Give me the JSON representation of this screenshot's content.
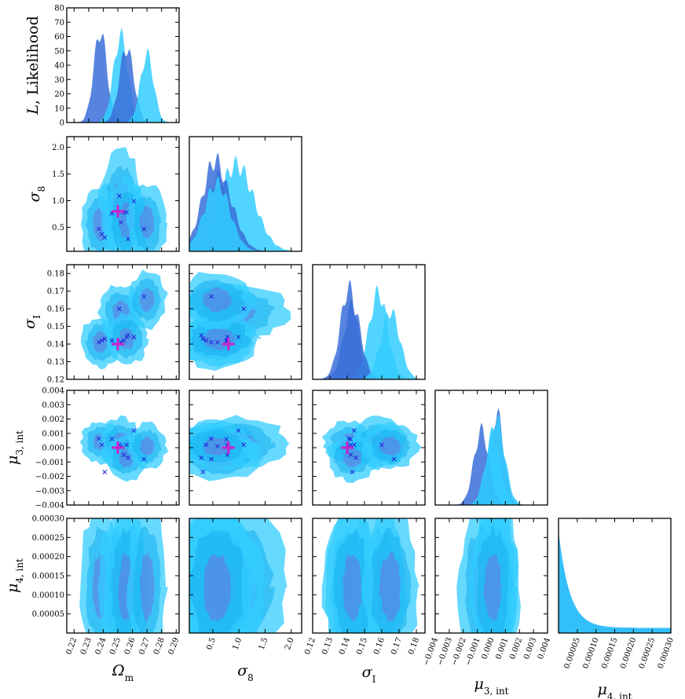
{
  "chart_data": {
    "type": "corner",
    "title": "",
    "colors": {
      "light": "#33ccff",
      "mid": "#1ab2f0",
      "dark": "#3a6fd8",
      "inner": "#6a78e0",
      "marker_cross": "#2222dd",
      "truth": "#cc22cc"
    },
    "parameters": [
      {
        "id": "om",
        "label_main": "Ω",
        "label_sub": "m",
        "range": [
          0.215,
          0.292
        ],
        "ticks": [
          "0.22",
          "0.23",
          "0.24",
          "0.25",
          "0.26",
          "0.27",
          "0.28",
          "0.29"
        ],
        "tick_values": [
          0.22,
          0.23,
          0.24,
          0.25,
          0.26,
          0.27,
          0.28,
          0.29
        ],
        "truth": 0.25
      },
      {
        "id": "s8",
        "label_main": "σ",
        "label_sub": "8",
        "range": [
          0.05,
          2.2
        ],
        "ticks": [
          "0.5",
          "1.0",
          "1.5",
          "2.0"
        ],
        "tick_values": [
          0.5,
          1.0,
          1.5,
          2.0
        ],
        "truth": 0.8
      },
      {
        "id": "sI",
        "label_main": "σ",
        "label_sub": "I",
        "range": [
          0.12,
          0.185
        ],
        "ticks": [
          "0.12",
          "0.13",
          "0.14",
          "0.15",
          "0.16",
          "0.17",
          "0.18"
        ],
        "tick_values": [
          0.12,
          0.13,
          0.14,
          0.15,
          0.16,
          0.17,
          0.18
        ],
        "truth": 0.14
      },
      {
        "id": "m3",
        "label_main": "μ",
        "label_sub": "3, int",
        "range": [
          -0.004,
          0.004
        ],
        "ticks": [
          "−0.004",
          "−0.003",
          "−0.002",
          "−0.001",
          "0.000",
          "0.001",
          "0.002",
          "0.003",
          "0.004"
        ],
        "tick_values": [
          -0.004,
          -0.003,
          -0.002,
          -0.001,
          0.0,
          0.001,
          0.002,
          0.003,
          0.004
        ],
        "truth": 0.0
      },
      {
        "id": "m4",
        "label_main": "μ",
        "label_sub": "4, int",
        "range": [
          0.0,
          0.0003
        ],
        "ticks": [
          "0.00005",
          "0.00010",
          "0.00015",
          "0.00020",
          "0.00025",
          "0.00030"
        ],
        "tick_values": [
          5e-05,
          0.0001,
          0.00015,
          0.0002,
          0.00025,
          0.0003
        ],
        "truth": null
      }
    ],
    "diag_ylabel_main": "L",
    "diag_ylabel_rest": ", Likelihood",
    "likelihood_axis": {
      "range": [
        0,
        80
      ],
      "ticks": [
        "0",
        "10",
        "20",
        "30",
        "40",
        "50",
        "60",
        "70",
        "80"
      ],
      "tick_values": [
        0,
        10,
        20,
        30,
        40,
        50,
        60,
        70,
        80
      ]
    },
    "realizations": [
      {
        "om": 0.237,
        "s8": 0.47,
        "sI": 0.141,
        "m3": 0.00063
      },
      {
        "om": 0.239,
        "s8": 0.37,
        "sI": 0.142,
        "m3": 0.0002
      },
      {
        "om": 0.241,
        "s8": 0.31,
        "sI": 0.143,
        "m3": -0.0017
      },
      {
        "om": 0.246,
        "s8": 0.76,
        "sI": 0.142,
        "m3": 0.0006
      },
      {
        "om": 0.251,
        "s8": 1.09,
        "sI": 0.16,
        "m3": 0.0002
      },
      {
        "om": 0.252,
        "s8": 0.59,
        "sI": 0.141,
        "m3": 0.0001
      },
      {
        "om": 0.254,
        "s8": 0.78,
        "sI": 0.142,
        "m3": -0.0005
      },
      {
        "om": 0.256,
        "s8": 0.78,
        "sI": 0.144,
        "m3": 0.0002
      },
      {
        "om": 0.257,
        "s8": 0.28,
        "sI": 0.145,
        "m3": -0.0007
      },
      {
        "om": 0.261,
        "s8": 0.99,
        "sI": 0.144,
        "m3": 0.0012
      },
      {
        "om": 0.268,
        "s8": 0.47,
        "sI": 0.167,
        "m3": -0.0008
      }
    ],
    "posterior_blobs": [
      {
        "om": 0.238,
        "s8": 0.55,
        "sI": 0.141,
        "m3": 0.0004,
        "om_w": 0.01,
        "s8_w": 0.55,
        "sI_w": 0.011,
        "m3_w": 0.0011
      },
      {
        "om": 0.252,
        "s8": 0.95,
        "sI": 0.158,
        "m3": 0.00035,
        "om_w": 0.011,
        "s8_w": 0.75,
        "sI_w": 0.012,
        "m3_w": 0.0013
      },
      {
        "om": 0.256,
        "s8": 0.62,
        "sI": 0.143,
        "m3": -0.0007,
        "om_w": 0.011,
        "s8_w": 0.6,
        "sI_w": 0.011,
        "m3_w": 0.0012
      },
      {
        "om": 0.27,
        "s8": 0.58,
        "sI": 0.165,
        "m3": 0.0001,
        "om_w": 0.01,
        "s8_w": 0.55,
        "sI_w": 0.012,
        "m3_w": 0.0012
      }
    ]
  }
}
